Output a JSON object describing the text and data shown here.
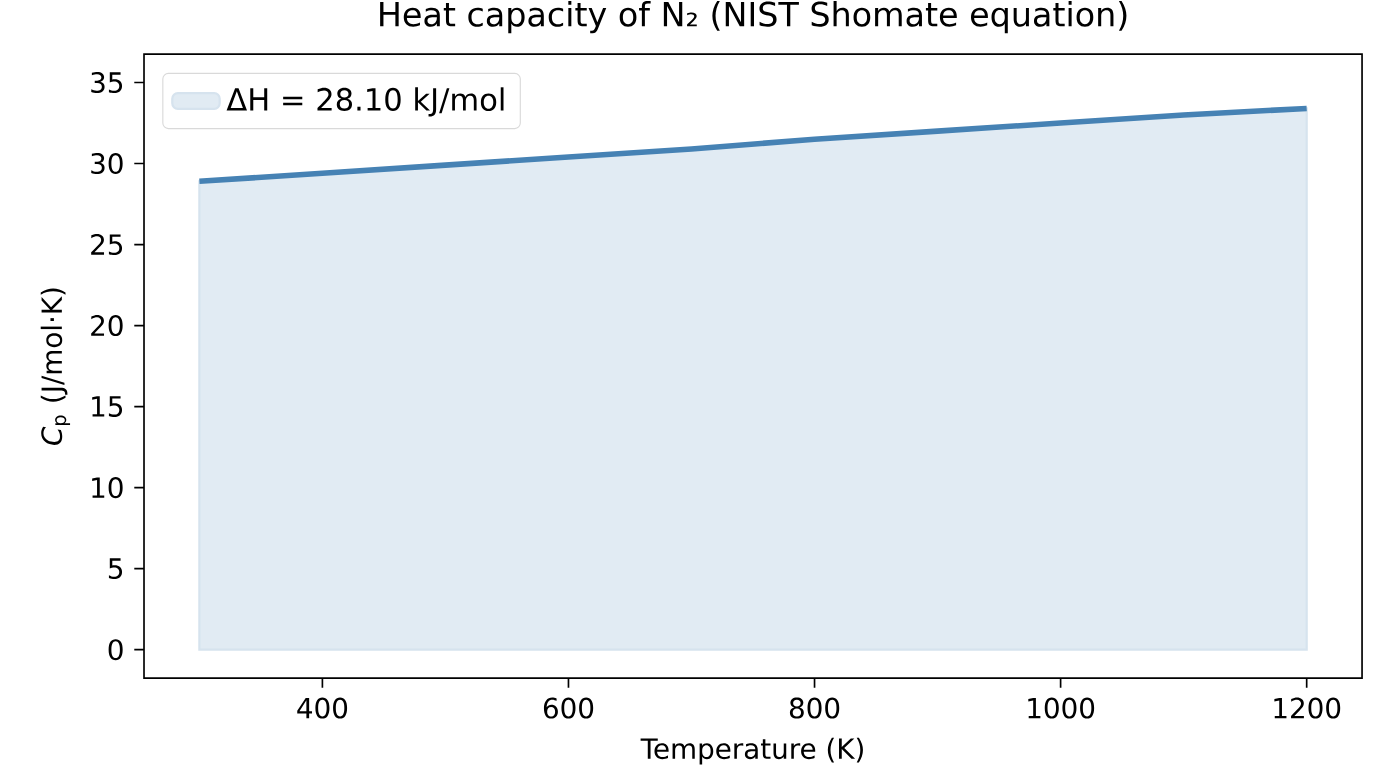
{
  "chart_data": {
    "type": "area",
    "title": "Heat capacity of N₂  (NIST Shomate equation)",
    "xlabel": "Temperature (K)",
    "ylabel": "*C*$_{p}$ (J/mol·K)",
    "x": [
      300,
      400,
      500,
      600,
      700,
      800,
      900,
      1000,
      1100,
      1200
    ],
    "series": [
      {
        "name": "ΔH = 28.10 kJ/mol",
        "color": "#4682b4",
        "values": [
          28.9,
          29.4,
          29.9,
          30.4,
          30.9,
          31.5,
          32.0,
          32.5,
          33.0,
          33.4
        ]
      }
    ],
    "xlim": [
      255,
      1245
    ],
    "ylim": [
      -1.75,
      36.75
    ],
    "xticks": [
      400,
      600,
      800,
      1000,
      1200
    ],
    "yticks": [
      0,
      5,
      10,
      15,
      20,
      25,
      30,
      35
    ],
    "legend": "top left",
    "grid": false
  }
}
